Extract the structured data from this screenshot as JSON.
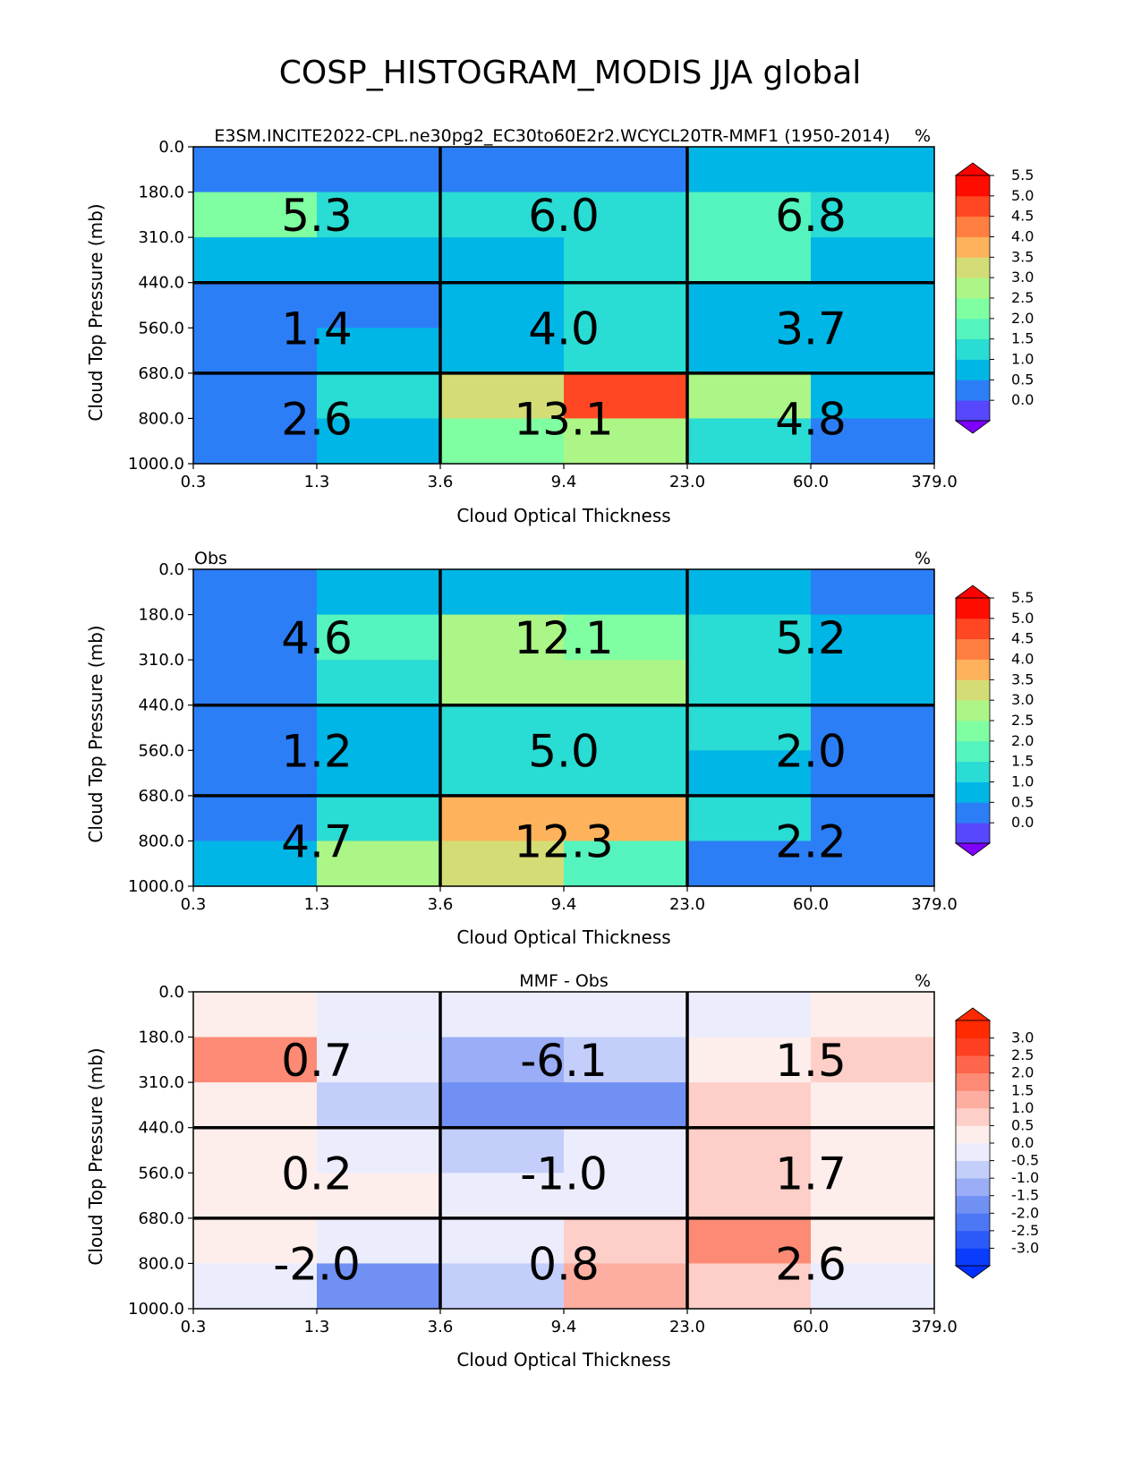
{
  "figure_title": "COSP_HISTOGRAM_MODIS JJA global",
  "chart_data": [
    {
      "type": "heatmap",
      "title": "E3SM.INCITE2022-CPL.ne30pg2_EC30to60E2r2.WCYCL20TR-MMF1 (1950-2014)",
      "units": "%",
      "xlabel": "Cloud Optical Thickness",
      "ylabel": "Cloud Top Pressure (mb)",
      "x_ticks": [
        "0.3",
        "1.3",
        "3.6",
        "9.4",
        "23.0",
        "60.0",
        "379.0"
      ],
      "y_ticks": [
        "0.0",
        "180.0",
        "310.0",
        "440.0",
        "560.0",
        "680.0",
        "800.0",
        "1000.0"
      ],
      "cells": [
        [
          0.3,
          0.3,
          0.3,
          0.3,
          0.8,
          0.8
        ],
        [
          2.3,
          1.3,
          1.3,
          1.3,
          1.8,
          1.3
        ],
        [
          0.8,
          0.8,
          0.8,
          1.3,
          1.8,
          0.8
        ],
        [
          0.3,
          0.3,
          0.8,
          1.3,
          0.8,
          0.8
        ],
        [
          0.3,
          0.8,
          0.8,
          1.3,
          0.8,
          0.8
        ],
        [
          0.3,
          1.3,
          3.3,
          4.8,
          2.8,
          0.8
        ],
        [
          0.3,
          0.8,
          2.3,
          2.8,
          1.3,
          0.3
        ]
      ],
      "group_sums": [
        [
          "5.3",
          "6.0",
          "6.8"
        ],
        [
          "1.4",
          "4.0",
          "3.7"
        ],
        [
          "2.6",
          "13.1",
          "4.8"
        ]
      ],
      "colorbar": {
        "levels": [
          -0.5,
          0.0,
          0.5,
          1.0,
          1.5,
          2.0,
          2.5,
          3.0,
          3.5,
          4.0,
          4.5,
          5.0,
          5.5,
          6.0
        ],
        "labels": [
          "5.5",
          "5.0",
          "4.5",
          "4.0",
          "3.5",
          "3.0",
          "2.5",
          "2.0",
          "1.5",
          "1.0",
          "0.5",
          "0.0"
        ],
        "colors": [
          "#5747fd",
          "#2c7ef7",
          "#00b6e6",
          "#29dcd4",
          "#55f4be",
          "#80fea2",
          "#abf686",
          "#d4dd75",
          "#fdb25b",
          "#ff7e41",
          "#ff4723",
          "#ff0c00"
        ],
        "under_color": "#8000ff",
        "over_color": "#ff0000"
      }
    },
    {
      "type": "heatmap",
      "title": "Obs",
      "units": "%",
      "xlabel": "Cloud Optical Thickness",
      "ylabel": "Cloud Top Pressure (mb)",
      "x_ticks": [
        "0.3",
        "1.3",
        "3.6",
        "9.4",
        "23.0",
        "60.0",
        "379.0"
      ],
      "y_ticks": [
        "0.0",
        "180.0",
        "310.0",
        "440.0",
        "560.0",
        "680.0",
        "800.0",
        "1000.0"
      ],
      "cells": [
        [
          0.3,
          0.8,
          0.8,
          0.8,
          0.8,
          0.3
        ],
        [
          0.3,
          1.8,
          2.8,
          2.3,
          1.3,
          0.8
        ],
        [
          0.3,
          1.3,
          2.8,
          2.8,
          1.3,
          0.8
        ],
        [
          0.3,
          0.8,
          1.3,
          1.3,
          1.3,
          0.3
        ],
        [
          0.3,
          0.8,
          1.3,
          1.3,
          0.8,
          0.3
        ],
        [
          0.3,
          1.3,
          3.8,
          3.8,
          1.3,
          0.3
        ],
        [
          0.8,
          2.8,
          3.3,
          1.8,
          0.3,
          0.3
        ]
      ],
      "group_sums": [
        [
          "4.6",
          "12.1",
          "5.2"
        ],
        [
          "1.2",
          "5.0",
          "2.0"
        ],
        [
          "4.7",
          "12.3",
          "2.2"
        ]
      ],
      "colorbar": {
        "levels": [
          -0.5,
          0.0,
          0.5,
          1.0,
          1.5,
          2.0,
          2.5,
          3.0,
          3.5,
          4.0,
          4.5,
          5.0,
          5.5,
          6.0
        ],
        "labels": [
          "5.5",
          "5.0",
          "4.5",
          "4.0",
          "3.5",
          "3.0",
          "2.5",
          "2.0",
          "1.5",
          "1.0",
          "0.5",
          "0.0"
        ],
        "colors": [
          "#5747fd",
          "#2c7ef7",
          "#00b6e6",
          "#29dcd4",
          "#55f4be",
          "#80fea2",
          "#abf686",
          "#d4dd75",
          "#fdb25b",
          "#ff7e41",
          "#ff4723",
          "#ff0c00"
        ],
        "under_color": "#8000ff",
        "over_color": "#ff0000"
      }
    },
    {
      "type": "heatmap",
      "title": "MMF - Obs",
      "units": "%",
      "xlabel": "Cloud Optical Thickness",
      "ylabel": "Cloud Top Pressure (mb)",
      "x_ticks": [
        "0.3",
        "1.3",
        "3.6",
        "9.4",
        "23.0",
        "60.0",
        "379.0"
      ],
      "y_ticks": [
        "0.0",
        "180.0",
        "310.0",
        "440.0",
        "560.0",
        "680.0",
        "800.0",
        "1000.0"
      ],
      "cells": [
        [
          0.1,
          -0.1,
          -0.1,
          -0.1,
          -0.1,
          0.1
        ],
        [
          1.6,
          -0.1,
          -1.3,
          -0.6,
          0.1,
          0.6
        ],
        [
          0.1,
          -0.6,
          -1.6,
          -1.6,
          0.6,
          0.1
        ],
        [
          0.1,
          -0.1,
          -0.6,
          -0.1,
          0.6,
          0.1
        ],
        [
          0.1,
          0.1,
          -0.1,
          -0.1,
          0.6,
          0.1
        ],
        [
          0.1,
          -0.1,
          -0.1,
          0.6,
          1.6,
          0.1
        ],
        [
          -0.1,
          -1.6,
          -0.6,
          1.1,
          0.6,
          -0.1
        ]
      ],
      "group_sums": [
        [
          "0.7",
          "-6.1",
          "1.5"
        ],
        [
          "0.2",
          "-1.0",
          "1.7"
        ],
        [
          "-2.0",
          "0.8",
          "2.6"
        ]
      ],
      "colorbar": {
        "levels": [
          -3.25,
          -3.0,
          -2.5,
          -2.0,
          -1.5,
          -1.0,
          -0.5,
          0.0,
          0.5,
          1.0,
          1.5,
          2.0,
          2.5,
          3.0,
          3.25
        ],
        "labels": [
          "3.0",
          "2.5",
          "2.0",
          "1.5",
          "1.0",
          "0.5",
          "0.0",
          "-0.5",
          "-1.0",
          "-1.5",
          "-2.0",
          "-2.5",
          "-3.0"
        ],
        "colors": [
          "#0a3cfc",
          "#2b5af8",
          "#4d77f4",
          "#7190f4",
          "#9aadf6",
          "#c4cefa",
          "#ebedfd",
          "#fdeeec",
          "#fdcfc8",
          "#fdaea0",
          "#fd8a74",
          "#fe654a",
          "#fe3f22",
          "#ff2a00"
        ],
        "under_color": "#0030ff",
        "over_color": "#ff2a00"
      }
    }
  ]
}
